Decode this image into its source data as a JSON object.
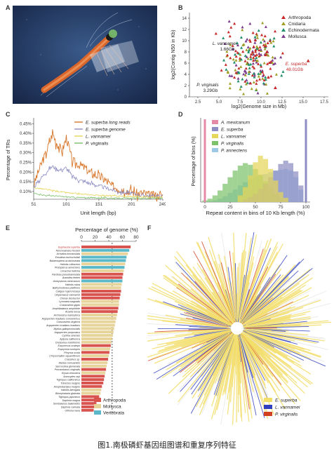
{
  "labels": {
    "a": "A",
    "b": "B",
    "c": "C",
    "d": "D",
    "e": "E",
    "f": "F"
  },
  "caption": "图1.南极磷虾基因组图谱和重复序列特征",
  "colors": {
    "arthropoda": "#c62828",
    "cnidaria": "#9e9d24",
    "echinodermata": "#1e8f6a",
    "mollusca": "#7b3a8c",
    "superba_long": "#d8772a",
    "superba_genome": "#8e8ec4",
    "vannamei": "#e6d65a",
    "virginalis": "#7cc26b",
    "mexicanum": "#e58aa6",
    "annectens": "#9cc9e6",
    "e_arthropoda": "#d9534f",
    "e_mollusca": "#e7d49a",
    "e_vertebrata": "#5bb8c9",
    "f_superba": "#f3de6a",
    "f_vannamei": "#2f3fbf",
    "f_virginalis": "#d2411f"
  },
  "chart_data": [
    {
      "panel": "B",
      "type": "scatter",
      "xlabel": "log2(Genome size in Mb)",
      "ylabel": "log2(Contig N50 in Kb)",
      "xticks": [
        "2.5",
        "5.0",
        "7.5",
        "10.0",
        "12.5",
        "15.0",
        "17.5"
      ],
      "yticks": [
        "0",
        "2",
        "4",
        "6",
        "8",
        "10",
        "12",
        "14"
      ],
      "xlim": [
        1.5,
        18
      ],
      "ylim": [
        0,
        15
      ],
      "legend": [
        "Arthropoda",
        "Cnidaria",
        "Echinodermata",
        "Mollusca"
      ],
      "annotations": [
        {
          "name": "L. vannamei",
          "size": "1.66Gb",
          "x": 10.7,
          "y": 8.0
        },
        {
          "name": "P. virginalis",
          "size": "3.29Gb",
          "x": 11.7,
          "y": 1.6
        },
        {
          "name": "E. superba",
          "size": "48.01Gb",
          "x": 15.6,
          "y": 6.4
        }
      ],
      "grid": false
    },
    {
      "panel": "C",
      "type": "line",
      "xlabel": "Unit length (bp)",
      "ylabel": "Percentage of TRs",
      "xticks": [
        "51",
        "101",
        "151",
        "201",
        "249"
      ],
      "yticks": [
        "0.10%",
        "0.15%",
        "0.20%",
        "0.25%",
        "0.30%",
        "0.35%",
        "0.40%",
        "0.45%"
      ],
      "xlim": [
        51,
        249
      ],
      "ylim": [
        0.06,
        0.48
      ],
      "series": [
        {
          "name": "E. superba long reads",
          "x": [
            51,
            60,
            70,
            80,
            85,
            90,
            95,
            101,
            110,
            120,
            130,
            140,
            150,
            160,
            170,
            180,
            190,
            200,
            210,
            220,
            230,
            240,
            249
          ],
          "values": [
            0.13,
            0.22,
            0.3,
            0.4,
            0.36,
            0.33,
            0.31,
            0.38,
            0.26,
            0.24,
            0.22,
            0.19,
            0.18,
            0.16,
            0.13,
            0.12,
            0.11,
            0.1,
            0.09,
            0.09,
            0.08,
            0.08,
            0.08
          ]
        },
        {
          "name": "E. superba genome",
          "x": [
            51,
            60,
            70,
            80,
            90,
            101,
            110,
            120,
            130,
            140,
            150,
            160,
            170,
            180,
            190,
            200,
            210,
            220,
            230,
            240,
            249
          ],
          "values": [
            0.12,
            0.16,
            0.2,
            0.23,
            0.21,
            0.22,
            0.18,
            0.16,
            0.15,
            0.14,
            0.13,
            0.12,
            0.11,
            0.1,
            0.095,
            0.09,
            0.085,
            0.08,
            0.078,
            0.076,
            0.075
          ]
        },
        {
          "name": "L. vannamei",
          "x": [
            51,
            70,
            90,
            110,
            130,
            150,
            170,
            190,
            210,
            230,
            249
          ],
          "values": [
            0.12,
            0.11,
            0.1,
            0.09,
            0.085,
            0.08,
            0.078,
            0.075,
            0.073,
            0.072,
            0.07
          ]
        },
        {
          "name": "P. virginalis",
          "x": [
            51,
            70,
            90,
            110,
            130,
            150,
            170,
            190,
            210,
            230,
            249
          ],
          "values": [
            0.09,
            0.08,
            0.075,
            0.07,
            0.068,
            0.067,
            0.066,
            0.065,
            0.065,
            0.065,
            0.065
          ]
        }
      ]
    },
    {
      "panel": "D",
      "type": "bar",
      "xlabel": "Repeat content in bins of 10 Kb length (%)",
      "ylabel": "Percentage of bins (%)",
      "xticks": [
        "0",
        "25",
        "50",
        "75",
        "100"
      ],
      "xlim": [
        0,
        100
      ],
      "series": [
        {
          "name": "A. mexicanum",
          "x": [
            0
          ],
          "values": [
            1.0
          ]
        },
        {
          "name": "E. superba",
          "x": [
            40,
            45,
            50,
            55,
            60,
            65,
            70,
            75,
            80,
            85,
            90,
            95,
            100
          ],
          "values": [
            0.03,
            0.06,
            0.1,
            0.16,
            0.22,
            0.3,
            0.38,
            0.46,
            0.5,
            0.47,
            0.37,
            0.2,
            1.0
          ]
        },
        {
          "name": "L. vannamei",
          "x": [
            35,
            40,
            45,
            50,
            55,
            60,
            65,
            70,
            75,
            80
          ],
          "values": [
            0.08,
            0.18,
            0.32,
            0.48,
            0.56,
            0.52,
            0.4,
            0.26,
            0.12,
            0.05
          ]
        },
        {
          "name": "P. virginalis",
          "x": [
            0,
            5,
            10,
            15,
            20,
            25,
            30,
            35,
            40,
            45,
            50,
            55,
            60,
            65,
            70,
            75,
            80
          ],
          "values": [
            0.02,
            0.04,
            0.08,
            0.14,
            0.22,
            0.3,
            0.38,
            0.44,
            0.47,
            0.45,
            0.4,
            0.33,
            0.25,
            0.17,
            0.1,
            0.05,
            0.02
          ]
        },
        {
          "name": "P. annectens",
          "x": [
            5,
            10,
            15,
            20,
            25,
            30,
            35,
            40,
            45,
            50,
            55,
            60,
            65,
            70,
            75,
            80,
            85,
            90,
            95
          ],
          "values": [
            0.01,
            0.02,
            0.04,
            0.07,
            0.11,
            0.15,
            0.2,
            0.24,
            0.27,
            0.3,
            0.32,
            0.34,
            0.36,
            0.38,
            0.39,
            0.4,
            0.38,
            0.3,
            0.15
          ]
        }
      ]
    },
    {
      "panel": "E",
      "type": "bar",
      "orientation": "horizontal",
      "xlabel": "Percentage of genome (%)",
      "xticks": [
        "0",
        "20",
        "40",
        "60",
        "80"
      ],
      "xlim": [
        0,
        80
      ],
      "reference_line": 45,
      "legend": [
        "Arthropoda",
        "Mollusca",
        "Vertebrata"
      ],
      "categories": [
        "Euphausia superba",
        "Neoceratodus forsteri",
        "Achatina immaculata",
        "Ensatina eschscholtzii",
        "Balaenoptera acutorostrata",
        "Haliotis rufescens",
        "Protopterus annectens",
        "Limacina helicina",
        "Pardosa pseudoannulata",
        "Aranidea feeleri",
        "Ambystoma mexicanum",
        "Haliotis rubra",
        "Bathymodiolus platifrons",
        "Caligus rogercresseyi",
        "Litopenaeus vannamei",
        "Cherax destructor",
        "Lymnaea stagnalis",
        "Crassostrea gigas",
        "Amphibalanus amphitrite",
        "Acartia tonsa",
        "Archivesica marissinica",
        "Argopecten irradians concentricus",
        "Crassostrea virginica",
        "Argopecten irradians irradians",
        "Mytilus galloprovincialis",
        "Argopecten purpuratus",
        "Cyclina sinensis",
        "Aplysia californica",
        "Dreissena rostriformis",
        "Eurycercus scatepri",
        "Euprymna scolopes",
        "Phrynus scuta",
        "Chrysomallon squamiferum",
        "Crassinus sp.",
        "Marisa cornuarietis",
        "Saccostrea glomerata",
        "Procambarus virginalis",
        "Elysia chlorotica",
        "Ancorydes rayi",
        "Tigriopus californicus",
        "Trinectes insignis",
        "Anoplodactylus insignis",
        "Haliotis laevigata",
        "Biomphalaria glabrata",
        "Tigriopus japonicus",
        "Daphnia magna",
        "Sembalanus balanoides",
        "Daphnia carinata",
        "Oithona nana"
      ],
      "groups": [
        "Arthropoda",
        "Vertebrata",
        "Mollusca",
        "Vertebrata",
        "Vertebrata",
        "Mollusca",
        "Vertebrata",
        "Mollusca",
        "Arthropoda",
        "Arthropoda",
        "Vertebrata",
        "Mollusca",
        "Mollusca",
        "Arthropoda",
        "Arthropoda",
        "Arthropoda",
        "Mollusca",
        "Mollusca",
        "Arthropoda",
        "Arthropoda",
        "Mollusca",
        "Mollusca",
        "Mollusca",
        "Mollusca",
        "Mollusca",
        "Mollusca",
        "Mollusca",
        "Mollusca",
        "Mollusca",
        "Arthropoda",
        "Mollusca",
        "Arthropoda",
        "Mollusca",
        "Arthropoda",
        "Mollusca",
        "Mollusca",
        "Arthropoda",
        "Mollusca",
        "Arthropoda",
        "Arthropoda",
        "Arthropoda",
        "Arthropoda",
        "Mollusca",
        "Mollusca",
        "Arthropoda",
        "Arthropoda",
        "Arthropoda",
        "Arthropoda",
        "Arthropoda"
      ],
      "values": [
        72,
        70,
        68,
        66,
        65,
        64,
        63,
        62,
        61,
        60,
        60,
        59,
        58,
        58,
        57,
        56,
        55,
        55,
        54,
        53,
        52,
        51,
        50,
        49,
        48,
        47,
        46,
        45,
        44,
        43,
        42,
        41,
        40,
        39,
        38,
        37,
        36,
        35,
        34,
        33,
        32,
        30,
        29,
        28,
        26,
        24,
        22,
        20,
        18
      ]
    },
    {
      "panel": "F",
      "type": "other",
      "description_legend": [
        "E. superba",
        "L. vannamei",
        "P. virginalis"
      ]
    }
  ]
}
